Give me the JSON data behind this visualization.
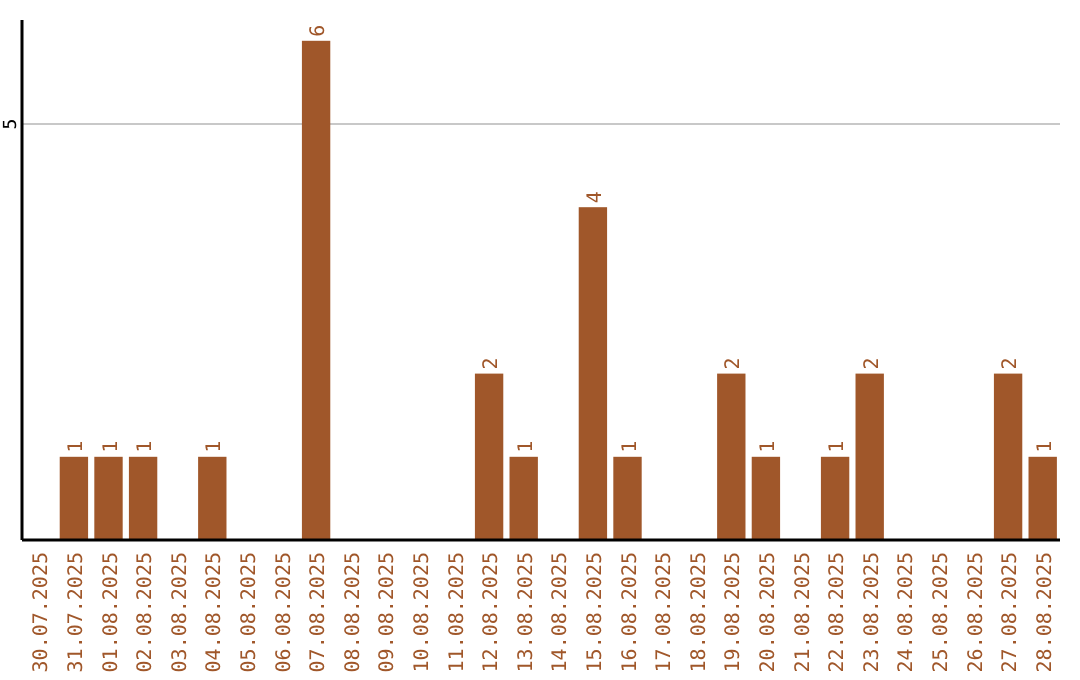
{
  "chart_data": {
    "type": "bar",
    "categories": [
      "30.07.2025",
      "31.07.2025",
      "01.08.2025",
      "02.08.2025",
      "03.08.2025",
      "04.08.2025",
      "05.08.2025",
      "06.08.2025",
      "07.08.2025",
      "08.08.2025",
      "09.08.2025",
      "10.08.2025",
      "11.08.2025",
      "12.08.2025",
      "13.08.2025",
      "14.08.2025",
      "15.08.2025",
      "16.08.2025",
      "17.08.2025",
      "18.08.2025",
      "19.08.2025",
      "20.08.2025",
      "21.08.2025",
      "22.08.2025",
      "23.08.2025",
      "24.08.2025",
      "25.08.2025",
      "26.08.2025",
      "27.08.2025",
      "28.08.2025"
    ],
    "values": [
      0,
      1,
      1,
      1,
      0,
      1,
      0,
      0,
      6,
      0,
      0,
      0,
      0,
      2,
      1,
      0,
      4,
      1,
      0,
      0,
      2,
      1,
      0,
      1,
      2,
      0,
      0,
      0,
      2,
      1
    ],
    "value_labels": [
      null,
      "1",
      "1",
      "1",
      null,
      "1",
      null,
      null,
      "6",
      null,
      null,
      null,
      null,
      "2",
      "1",
      null,
      "4",
      "1",
      null,
      null,
      "2",
      "1",
      null,
      "1",
      "2",
      null,
      null,
      null,
      "2",
      "1"
    ],
    "color": "#a0572a",
    "ylim": [
      0,
      6.25
    ],
    "yticks": [
      5
    ],
    "grid": "y"
  }
}
